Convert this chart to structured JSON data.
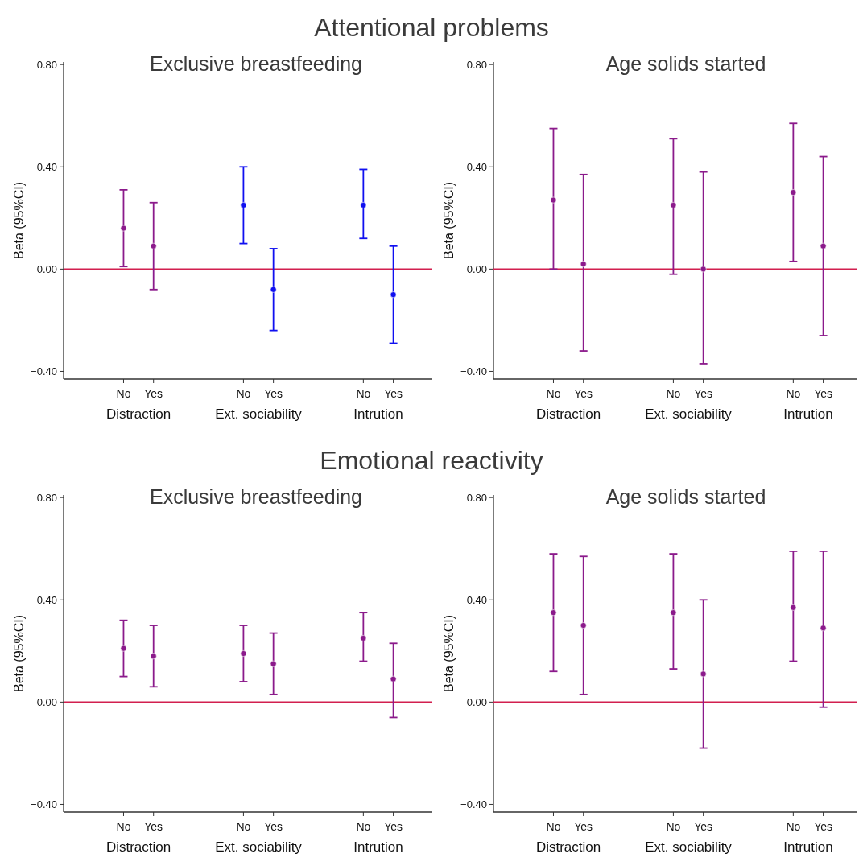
{
  "chart_data": [
    {
      "type": "scatter",
      "subtitle": "Attentional problems",
      "title": "Exclusive breastfeeding",
      "ylabel": "Beta (95%CI)",
      "categories": [
        "No",
        "Yes",
        null,
        null,
        "No",
        "Yes",
        null,
        null,
        "No",
        "Yes"
      ],
      "annotations": [
        "Distraction",
        "Ext. sociability",
        "Intrution"
      ],
      "marker": "circle",
      "ylim": [
        -0.43,
        0.81
      ],
      "yticks": [
        {
          "value": -0.4,
          "label": "−0.40"
        },
        {
          "value": 0,
          "label": "0.00"
        },
        {
          "value": 0.4,
          "label": "0.40"
        },
        {
          "value": 0.8,
          "label": "0.80"
        }
      ],
      "ref_lines": [
        {
          "axis": "y",
          "value": 0,
          "color": "#d21f4f"
        }
      ],
      "series": [
        {
          "colors": [
            "#8b1a8b",
            "#8b1a8b",
            null,
            null,
            "#1010f0",
            "#1010f0",
            null,
            null,
            "#1010f0",
            "#1010f0"
          ],
          "values": [
            0.16,
            0.09,
            null,
            null,
            0.25,
            -0.08,
            null,
            null,
            0.25,
            -0.1
          ],
          "errors": [
            [
              0.01,
              0.31
            ],
            [
              -0.08,
              0.26
            ],
            null,
            null,
            [
              0.1,
              0.4
            ],
            [
              -0.24,
              0.08
            ],
            null,
            null,
            [
              0.12,
              0.39
            ],
            [
              -0.29,
              0.09
            ]
          ]
        }
      ]
    },
    {
      "type": "scatter",
      "title": "Age solids started",
      "ylabel": "Beta (95%CI)",
      "categories": [
        "No",
        "Yes",
        null,
        null,
        "No",
        "Yes",
        null,
        null,
        "No",
        "Yes"
      ],
      "annotations": [
        "Distraction",
        "Ext. sociability",
        "Intrution"
      ],
      "marker": "circle",
      "ylim": [
        -0.43,
        0.81
      ],
      "yticks": [
        {
          "value": -0.4,
          "label": "−0.40"
        },
        {
          "value": 0,
          "label": "0.00"
        },
        {
          "value": 0.4,
          "label": "0.40"
        },
        {
          "value": 0.8,
          "label": "0.80"
        }
      ],
      "ref_lines": [
        {
          "axis": "y",
          "value": 0,
          "color": "#d21f4f"
        }
      ],
      "series": [
        {
          "colors": [
            "#8b1a8b",
            "#8b1a8b",
            null,
            null,
            "#8b1a8b",
            "#8b1a8b",
            null,
            null,
            "#8b1a8b",
            "#8b1a8b"
          ],
          "values": [
            0.27,
            0.02,
            null,
            null,
            0.25,
            0.0,
            null,
            null,
            0.3,
            0.09
          ],
          "errors": [
            [
              0.0,
              0.55
            ],
            [
              -0.32,
              0.37
            ],
            null,
            null,
            [
              -0.02,
              0.51
            ],
            [
              -0.37,
              0.38
            ],
            null,
            null,
            [
              0.03,
              0.57
            ],
            [
              -0.26,
              0.44
            ]
          ]
        }
      ]
    },
    {
      "type": "scatter",
      "subtitle": "Emotional reactivity",
      "title": "Exclusive breastfeeding",
      "ylabel": "Beta (95%CI)",
      "categories": [
        "No",
        "Yes",
        null,
        null,
        "No",
        "Yes",
        null,
        null,
        "No",
        "Yes"
      ],
      "annotations": [
        "Distraction",
        "Ext. sociability",
        "Intrution"
      ],
      "marker": "circle",
      "ylim": [
        -0.43,
        0.81
      ],
      "yticks": [
        {
          "value": -0.4,
          "label": "−0.40"
        },
        {
          "value": 0,
          "label": "0.00"
        },
        {
          "value": 0.4,
          "label": "0.40"
        },
        {
          "value": 0.8,
          "label": "0.80"
        }
      ],
      "ref_lines": [
        {
          "axis": "y",
          "value": 0,
          "color": "#d21f4f"
        }
      ],
      "series": [
        {
          "colors": [
            "#8b1a8b",
            "#8b1a8b",
            null,
            null,
            "#8b1a8b",
            "#8b1a8b",
            null,
            null,
            "#8b1a8b",
            "#8b1a8b"
          ],
          "values": [
            0.21,
            0.18,
            null,
            null,
            0.19,
            0.15,
            null,
            null,
            0.25,
            0.09
          ],
          "errors": [
            [
              0.1,
              0.32
            ],
            [
              0.06,
              0.3
            ],
            null,
            null,
            [
              0.08,
              0.3
            ],
            [
              0.03,
              0.27
            ],
            null,
            null,
            [
              0.16,
              0.35
            ],
            [
              -0.06,
              0.23
            ]
          ]
        }
      ]
    },
    {
      "type": "scatter",
      "title": "Age solids started",
      "ylabel": "Beta (95%CI)",
      "categories": [
        "No",
        "Yes",
        null,
        null,
        "No",
        "Yes",
        null,
        null,
        "No",
        "Yes"
      ],
      "annotations": [
        "Distraction",
        "Ext. sociability",
        "Intrution"
      ],
      "marker": "circle",
      "ylim": [
        -0.43,
        0.81
      ],
      "yticks": [
        {
          "value": -0.4,
          "label": "−0.40"
        },
        {
          "value": 0,
          "label": "0.00"
        },
        {
          "value": 0.4,
          "label": "0.40"
        },
        {
          "value": 0.8,
          "label": "0.80"
        }
      ],
      "ref_lines": [
        {
          "axis": "y",
          "value": 0,
          "color": "#d21f4f"
        }
      ],
      "series": [
        {
          "colors": [
            "#8b1a8b",
            "#8b1a8b",
            null,
            null,
            "#8b1a8b",
            "#8b1a8b",
            null,
            null,
            "#8b1a8b",
            "#8b1a8b"
          ],
          "values": [
            0.35,
            0.3,
            null,
            null,
            0.35,
            0.11,
            null,
            null,
            0.37,
            0.29
          ],
          "errors": [
            [
              0.12,
              0.58
            ],
            [
              0.03,
              0.57
            ],
            null,
            null,
            [
              0.13,
              0.58
            ],
            [
              -0.18,
              0.4
            ],
            null,
            null,
            [
              0.16,
              0.59
            ],
            [
              -0.02,
              0.59
            ]
          ]
        }
      ]
    }
  ]
}
